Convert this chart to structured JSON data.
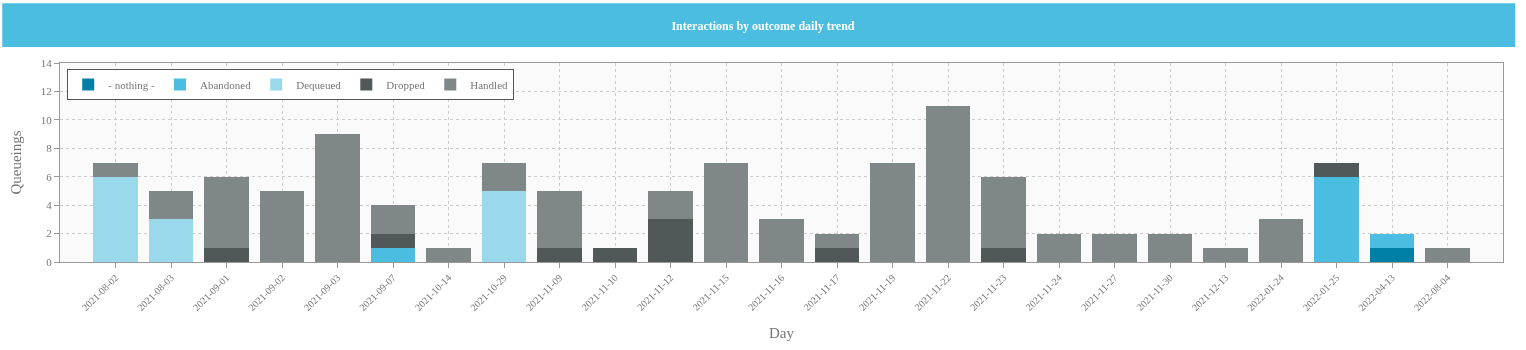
{
  "chart_data": {
    "type": "bar",
    "title": "Interactions by outcome daily trend",
    "xlabel": "Day",
    "ylabel": "Queueings",
    "stacked": true,
    "grid": true,
    "legend": "top left",
    "categories": [
      "2021-08-02",
      "2021-08-03",
      "2021-09-01",
      "2021-09-02",
      "2021-09-03",
      "2021-09-07",
      "2021-10-14",
      "2021-10-29",
      "2021-11-09",
      "2021-11-10",
      "2021-11-12",
      "2021-11-15",
      "2021-11-16",
      "2021-11-17",
      "2021-11-19",
      "2021-11-22",
      "2021-11-23",
      "2021-11-24",
      "2021-11-27",
      "2021-11-30",
      "2021-12-13",
      "2022-01-24",
      "2022-01-25",
      "2022-04-13",
      "2022-08-04"
    ],
    "ylim": [
      0,
      14
    ],
    "yticks": [
      0,
      2,
      4,
      6,
      8,
      10,
      12,
      14
    ],
    "series": [
      {
        "name": "- nothing -",
        "color": "#0080a6",
        "values": [
          0,
          0,
          0,
          0,
          0,
          0,
          0,
          0,
          0,
          0,
          0,
          0,
          0,
          0,
          0,
          0,
          0,
          0,
          0,
          0,
          0,
          0,
          0,
          1,
          0
        ]
      },
      {
        "name": "Abandoned",
        "color": "#4bbde0",
        "values": [
          0,
          0,
          0,
          0,
          0,
          1,
          0,
          0,
          0,
          0,
          0,
          0,
          0,
          0,
          0,
          0,
          0,
          0,
          0,
          0,
          0,
          0,
          6,
          1,
          0
        ]
      },
      {
        "name": "Dequeued",
        "color": "#9ad9ec",
        "values": [
          6,
          3,
          0,
          0,
          0,
          0,
          0,
          5,
          0,
          0,
          0,
          0,
          0,
          0,
          0,
          0,
          0,
          0,
          0,
          0,
          0,
          0,
          0,
          0,
          0
        ]
      },
      {
        "name": "Dropped",
        "color": "#505859",
        "values": [
          0,
          0,
          1,
          0,
          0,
          1,
          0,
          0,
          1,
          1,
          3,
          0,
          0,
          1,
          0,
          0,
          1,
          0,
          0,
          0,
          0,
          0,
          1,
          0,
          0
        ]
      },
      {
        "name": "Handled",
        "color": "#7f8789",
        "values": [
          1,
          2,
          5,
          5,
          9,
          2,
          1,
          2,
          4,
          0,
          2,
          7,
          3,
          1,
          7,
          11,
          5,
          2,
          2,
          2,
          1,
          3,
          0,
          0,
          1
        ]
      }
    ]
  }
}
